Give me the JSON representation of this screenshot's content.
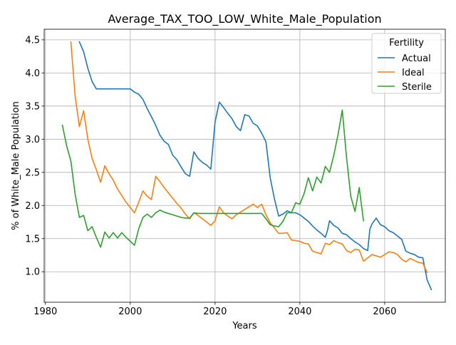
{
  "chart_data": {
    "type": "line",
    "title": "Average_TAX_TOO_LOW_White_Male_Population",
    "xlabel": "Years",
    "ylabel": "% of White_Male Population",
    "xlim": [
      1979.7,
      2074.3
    ],
    "ylim": [
      0.54,
      4.66
    ],
    "xticks": [
      1980,
      2000,
      2020,
      2040,
      2060
    ],
    "yticks": [
      1.0,
      1.5,
      2.0,
      2.5,
      3.0,
      3.5,
      4.0,
      4.5
    ],
    "xtick_labels": [
      "1980",
      "2000",
      "2020",
      "2040",
      "2060"
    ],
    "ytick_labels": [
      "1.0",
      "1.5",
      "2.0",
      "2.5",
      "3.0",
      "3.5",
      "4.0",
      "4.5"
    ],
    "grid": true,
    "legend": {
      "title": "Fertility",
      "position": "top-right"
    },
    "series": [
      {
        "name": "Actual",
        "color": "#1f77b4",
        "points": [
          [
            1988,
            4.47
          ],
          [
            1989,
            4.32
          ],
          [
            1990,
            4.07
          ],
          [
            1991,
            3.87
          ],
          [
            1992,
            3.76
          ],
          [
            1993,
            3.76
          ],
          [
            1994,
            3.76
          ],
          [
            1995,
            3.76
          ],
          [
            1996,
            3.76
          ],
          [
            1997,
            3.76
          ],
          [
            1998,
            3.76
          ],
          [
            1999,
            3.76
          ],
          [
            2000,
            3.76
          ],
          [
            2001,
            3.71
          ],
          [
            2002,
            3.68
          ],
          [
            2003,
            3.6
          ],
          [
            2004,
            3.46
          ],
          [
            2005,
            3.34
          ],
          [
            2006,
            3.21
          ],
          [
            2007,
            3.06
          ],
          [
            2008,
            2.97
          ],
          [
            2009,
            2.92
          ],
          [
            2010,
            2.76
          ],
          [
            2011,
            2.69
          ],
          [
            2012,
            2.58
          ],
          [
            2013,
            2.48
          ],
          [
            2014,
            2.44
          ],
          [
            2015,
            2.81
          ],
          [
            2016,
            2.71
          ],
          [
            2017,
            2.65
          ],
          [
            2018,
            2.61
          ],
          [
            2019,
            2.55
          ],
          [
            2020,
            3.26
          ],
          [
            2021,
            3.56
          ],
          [
            2022,
            3.48
          ],
          [
            2023,
            3.39
          ],
          [
            2024,
            3.31
          ],
          [
            2025,
            3.19
          ],
          [
            2026,
            3.13
          ],
          [
            2027,
            3.37
          ],
          [
            2028,
            3.35
          ],
          [
            2029,
            3.24
          ],
          [
            2030,
            3.2
          ],
          [
            2031,
            3.09
          ],
          [
            2032,
            2.96
          ],
          [
            2033,
            2.42
          ],
          [
            2034,
            2.1
          ],
          [
            2035,
            1.84
          ],
          [
            2036,
            1.87
          ],
          [
            2037,
            1.92
          ],
          [
            2038,
            1.89
          ],
          [
            2039,
            1.89
          ],
          [
            2040,
            1.86
          ],
          [
            2041,
            1.81
          ],
          [
            2042,
            1.76
          ],
          [
            2043,
            1.69
          ],
          [
            2044,
            1.63
          ],
          [
            2045,
            1.58
          ],
          [
            2046,
            1.52
          ],
          [
            2046.5,
            1.62
          ],
          [
            2047,
            1.77
          ],
          [
            2048,
            1.7
          ],
          [
            2049,
            1.66
          ],
          [
            2050,
            1.58
          ],
          [
            2051,
            1.56
          ],
          [
            2052,
            1.5
          ],
          [
            2053,
            1.45
          ],
          [
            2054,
            1.41
          ],
          [
            2055,
            1.35
          ],
          [
            2056,
            1.32
          ],
          [
            2056.5,
            1.64
          ],
          [
            2057,
            1.72
          ],
          [
            2058,
            1.81
          ],
          [
            2059,
            1.71
          ],
          [
            2060,
            1.68
          ],
          [
            2061,
            1.62
          ],
          [
            2062,
            1.59
          ],
          [
            2063,
            1.54
          ],
          [
            2064,
            1.49
          ],
          [
            2065,
            1.31
          ],
          [
            2066,
            1.28
          ],
          [
            2067,
            1.26
          ],
          [
            2068,
            1.22
          ],
          [
            2069,
            1.21
          ],
          [
            2070,
            0.88
          ],
          [
            2071,
            0.73
          ]
        ]
      },
      {
        "name": "Ideal",
        "color": "#ff7f0e",
        "points": [
          [
            1986,
            4.47
          ],
          [
            1987,
            3.65
          ],
          [
            1988,
            3.19
          ],
          [
            1989,
            3.43
          ],
          [
            1990,
            3.0
          ],
          [
            1991,
            2.71
          ],
          [
            1992,
            2.54
          ],
          [
            1993,
            2.35
          ],
          [
            1994,
            2.6
          ],
          [
            1995,
            2.48
          ],
          [
            1996,
            2.38
          ],
          [
            1997,
            2.25
          ],
          [
            1998,
            2.15
          ],
          [
            1999,
            2.05
          ],
          [
            2000,
            1.97
          ],
          [
            2001,
            1.89
          ],
          [
            2002,
            2.05
          ],
          [
            2003,
            2.22
          ],
          [
            2004,
            2.14
          ],
          [
            2005,
            2.09
          ],
          [
            2006,
            2.44
          ],
          [
            2007,
            2.36
          ],
          [
            2008,
            2.27
          ],
          [
            2009,
            2.19
          ],
          [
            2010,
            2.11
          ],
          [
            2011,
            2.03
          ],
          [
            2012,
            1.96
          ],
          [
            2013,
            1.87
          ],
          [
            2014,
            1.8
          ],
          [
            2015,
            1.89
          ],
          [
            2016,
            1.85
          ],
          [
            2017,
            1.8
          ],
          [
            2018,
            1.75
          ],
          [
            2019,
            1.7
          ],
          [
            2020,
            1.77
          ],
          [
            2021,
            1.98
          ],
          [
            2022,
            1.89
          ],
          [
            2023,
            1.84
          ],
          [
            2024,
            1.8
          ],
          [
            2025,
            1.86
          ],
          [
            2026,
            1.9
          ],
          [
            2027,
            1.94
          ],
          [
            2028,
            1.98
          ],
          [
            2029,
            2.02
          ],
          [
            2030,
            1.97
          ],
          [
            2031,
            2.02
          ],
          [
            2032,
            1.86
          ],
          [
            2033,
            1.74
          ],
          [
            2034,
            1.66
          ],
          [
            2035,
            1.58
          ],
          [
            2036,
            1.58
          ],
          [
            2037,
            1.59
          ],
          [
            2038,
            1.48
          ],
          [
            2039,
            1.47
          ],
          [
            2040,
            1.46
          ],
          [
            2041,
            1.43
          ],
          [
            2042,
            1.42
          ],
          [
            2043,
            1.31
          ],
          [
            2044,
            1.29
          ],
          [
            2045,
            1.27
          ],
          [
            2046,
            1.43
          ],
          [
            2047,
            1.41
          ],
          [
            2048,
            1.47
          ],
          [
            2049,
            1.44
          ],
          [
            2050,
            1.42
          ],
          [
            2051,
            1.32
          ],
          [
            2052,
            1.29
          ],
          [
            2053,
            1.34
          ],
          [
            2054,
            1.33
          ],
          [
            2055,
            1.16
          ],
          [
            2056,
            1.21
          ],
          [
            2057,
            1.26
          ],
          [
            2058,
            1.24
          ],
          [
            2059,
            1.22
          ],
          [
            2060,
            1.26
          ],
          [
            2061,
            1.3
          ],
          [
            2062,
            1.29
          ],
          [
            2063,
            1.26
          ],
          [
            2064,
            1.19
          ],
          [
            2065,
            1.15
          ],
          [
            2066,
            1.2
          ],
          [
            2067,
            1.17
          ],
          [
            2068,
            1.14
          ],
          [
            2069,
            1.13
          ],
          [
            2070,
            0.99
          ]
        ]
      },
      {
        "name": "Sterile",
        "color": "#2ca02c",
        "points": [
          [
            1984,
            3.21
          ],
          [
            1985,
            2.9
          ],
          [
            1986,
            2.67
          ],
          [
            1987,
            2.17
          ],
          [
            1988,
            1.82
          ],
          [
            1989,
            1.85
          ],
          [
            1990,
            1.62
          ],
          [
            1991,
            1.68
          ],
          [
            1992,
            1.52
          ],
          [
            1993,
            1.37
          ],
          [
            1994,
            1.6
          ],
          [
            1995,
            1.51
          ],
          [
            1996,
            1.59
          ],
          [
            1997,
            1.51
          ],
          [
            1998,
            1.59
          ],
          [
            1999,
            1.52
          ],
          [
            2000,
            1.46
          ],
          [
            2001,
            1.4
          ],
          [
            2002,
            1.65
          ],
          [
            2003,
            1.82
          ],
          [
            2004,
            1.87
          ],
          [
            2005,
            1.82
          ],
          [
            2006,
            1.89
          ],
          [
            2007,
            1.93
          ],
          [
            2008,
            1.9
          ],
          [
            2009,
            1.88
          ],
          [
            2010,
            1.86
          ],
          [
            2011,
            1.84
          ],
          [
            2012,
            1.82
          ],
          [
            2013,
            1.81
          ],
          [
            2014,
            1.81
          ],
          [
            2015,
            1.89
          ],
          [
            2016,
            1.88
          ],
          [
            2020,
            1.88
          ],
          [
            2025,
            1.88
          ],
          [
            2031,
            1.88
          ],
          [
            2032,
            1.8
          ],
          [
            2033,
            1.71
          ],
          [
            2034,
            1.69
          ],
          [
            2035,
            1.68
          ],
          [
            2036,
            1.76
          ],
          [
            2037,
            1.89
          ],
          [
            2038,
            1.89
          ],
          [
            2039,
            2.04
          ],
          [
            2040,
            2.02
          ],
          [
            2041,
            2.18
          ],
          [
            2042,
            2.42
          ],
          [
            2043,
            2.22
          ],
          [
            2044,
            2.43
          ],
          [
            2045,
            2.34
          ],
          [
            2046,
            2.59
          ],
          [
            2047,
            2.5
          ],
          [
            2048,
            2.76
          ],
          [
            2049,
            3.07
          ],
          [
            2050,
            3.44
          ],
          [
            2051,
            2.73
          ],
          [
            2052,
            2.14
          ],
          [
            2053,
            1.91
          ],
          [
            2054,
            2.27
          ],
          [
            2055,
            1.77
          ]
        ]
      }
    ]
  }
}
